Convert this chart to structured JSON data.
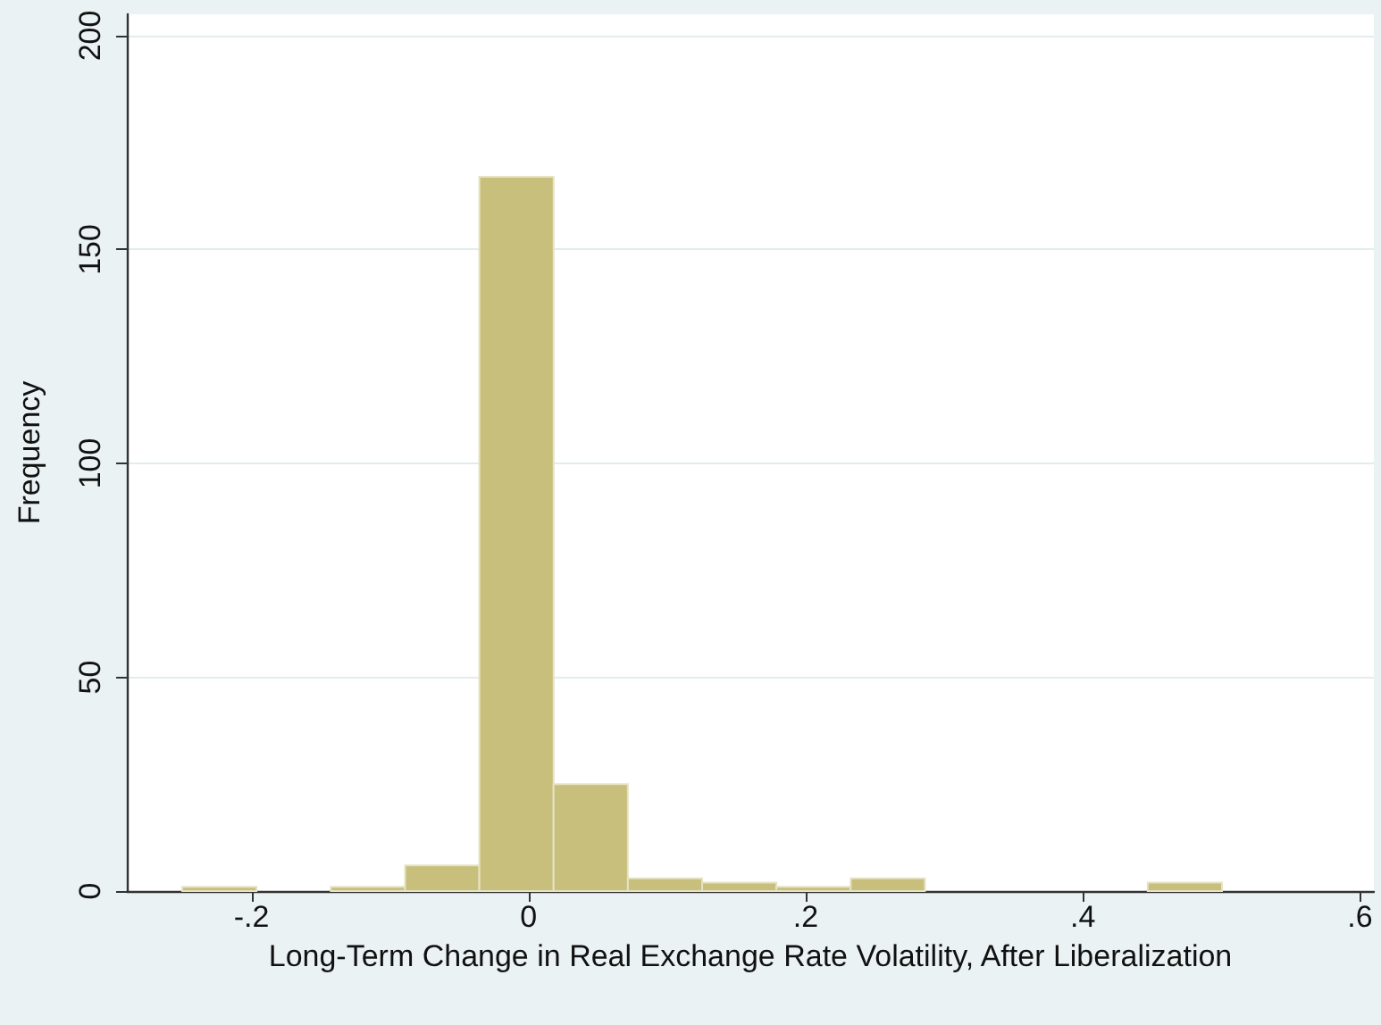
{
  "chart_data": {
    "type": "histogram",
    "xlabel": "Long-Term Change in Real Exchange Rate Volatility, After Liberalization",
    "ylabel": "Frequency",
    "bins": [
      -0.25,
      -0.1964,
      -0.1428,
      -0.0892,
      -0.0356,
      0.018,
      0.0716,
      0.1252,
      0.1788,
      0.2324,
      0.286,
      0.3396,
      0.3932,
      0.4468,
      0.5004
    ],
    "values": [
      1,
      0,
      1,
      6,
      167,
      25,
      3,
      2,
      1,
      3,
      0,
      0,
      0,
      2
    ],
    "color": "#c8bf7c",
    "xlim": [
      -0.29,
      0.61
    ],
    "ylim": [
      0,
      205
    ],
    "xticks": [
      {
        "value": -0.2,
        "label": "-.2"
      },
      0,
      {
        "value": 0.2,
        "label": ".2"
      },
      {
        "value": 0.4,
        "label": ".4"
      },
      {
        "value": 0.6,
        "label": ".6"
      }
    ],
    "yticks": [
      0,
      50,
      100,
      150,
      200
    ],
    "grid": "y"
  }
}
